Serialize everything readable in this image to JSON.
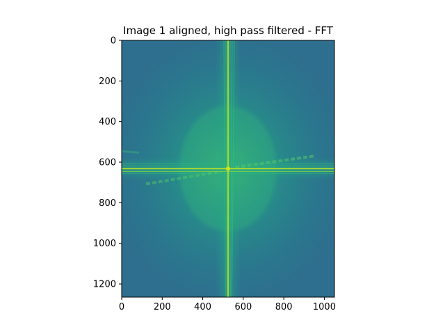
{
  "chart_data": {
    "type": "heatmap",
    "title": "Image 1 aligned, high pass filtered - FFT",
    "xlabel": "",
    "ylabel": "",
    "xlim": [
      0,
      1050
    ],
    "ylim": [
      1265,
      0
    ],
    "xticks": [
      0,
      200,
      400,
      600,
      800,
      1000
    ],
    "yticks": [
      0,
      200,
      400,
      600,
      800,
      1000,
      1200
    ],
    "center": {
      "x": 525,
      "y": 632
    },
    "colormap": "viridis",
    "colors": {
      "background": "#2e6e8e",
      "mid": "#23928c",
      "bright": "#3cbb75",
      "peak": "#b5de2b"
    },
    "grid": false,
    "legend": "none"
  }
}
